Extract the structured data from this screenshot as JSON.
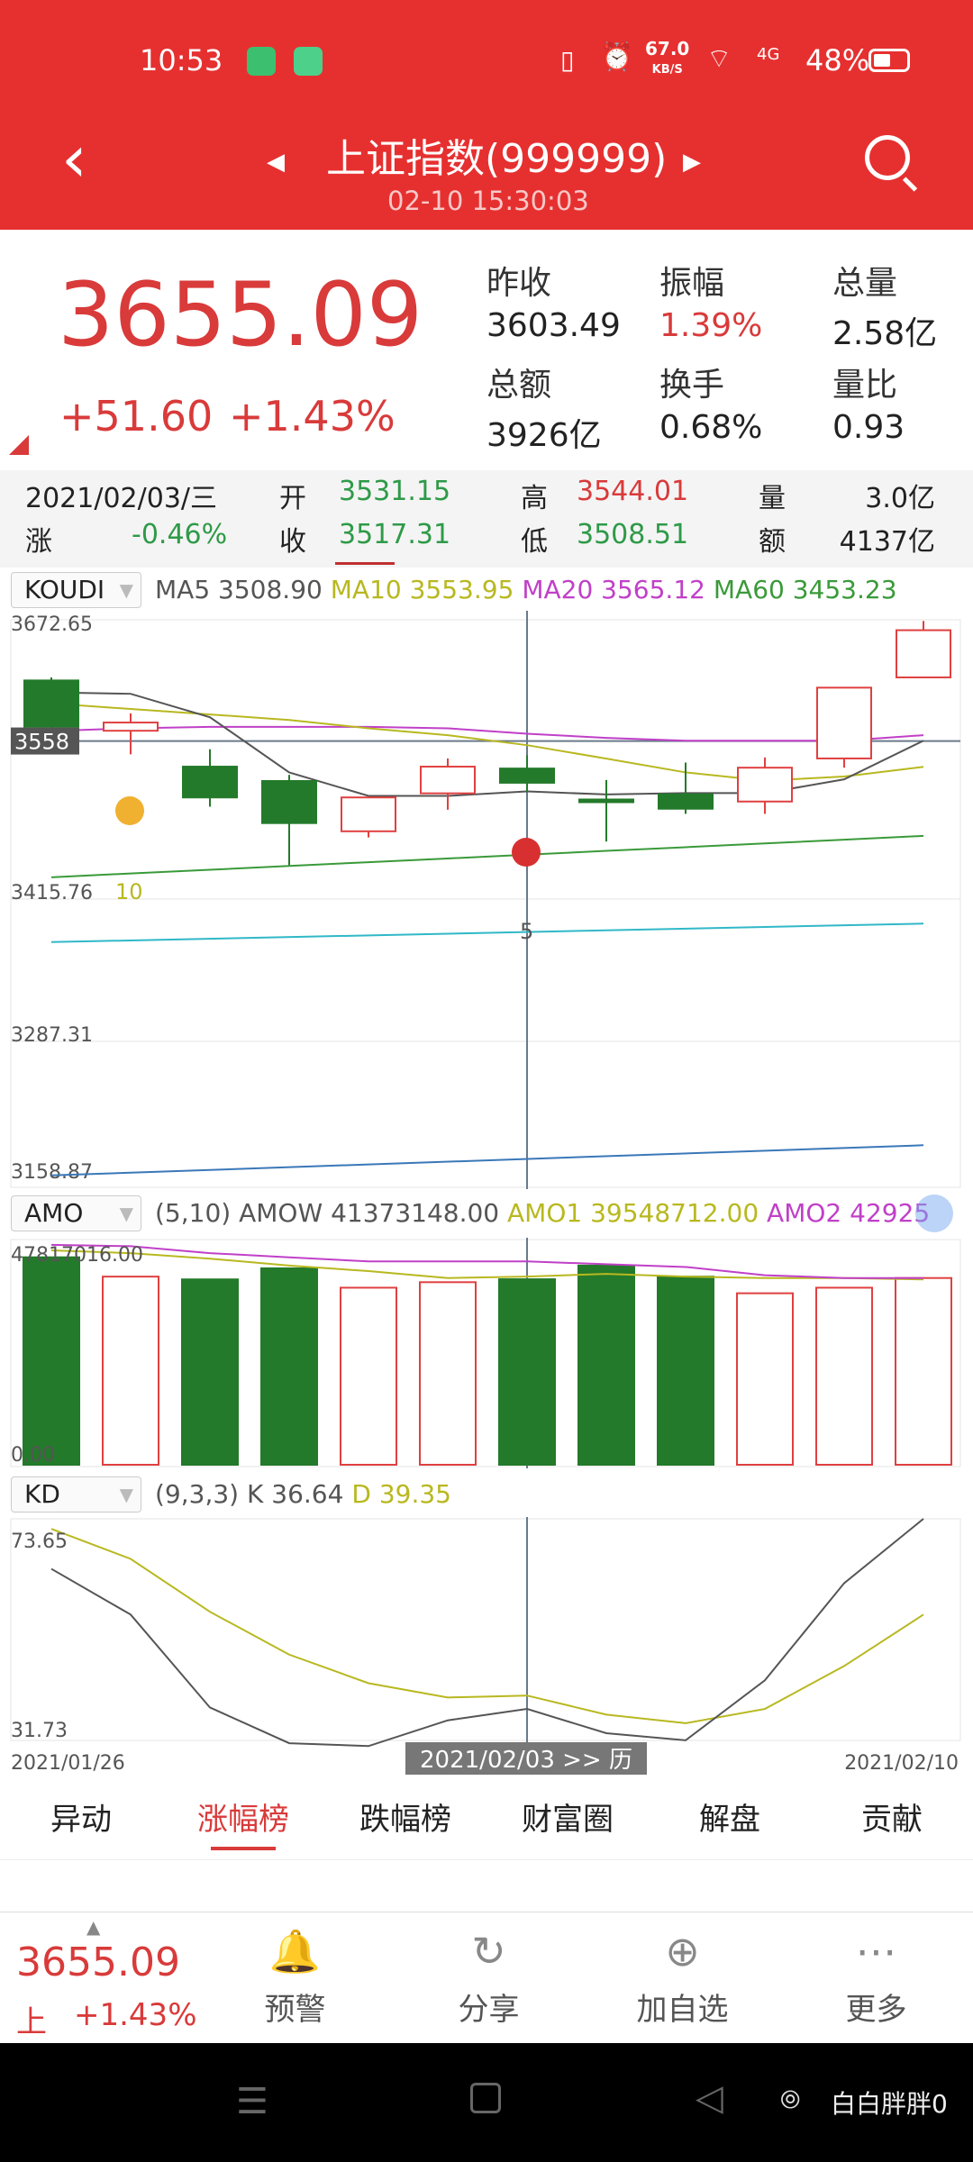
{
  "status": {
    "time": "10:53",
    "speed": "67.0",
    "speed_unit": "KB/S",
    "net": "4G",
    "battery": "48%"
  },
  "header": {
    "title": "上证指数(999999)",
    "datetime": "02-10 15:30:03"
  },
  "quote": {
    "price": "3655.09",
    "change": "+51.60",
    "change_pct": "+1.43%",
    "stats": [
      {
        "label": "昨收",
        "value": "3603.49",
        "color": "#222"
      },
      {
        "label": "振幅",
        "value": "1.39%",
        "color": "#d93a3a"
      },
      {
        "label": "总量",
        "value": "2.58亿",
        "color": "#222"
      },
      {
        "label": "总额",
        "value": "3926亿",
        "color": "#222"
      },
      {
        "label": "换手",
        "value": "0.68%",
        "color": "#222"
      },
      {
        "label": "量比",
        "value": "0.93",
        "color": "#222"
      }
    ]
  },
  "info": {
    "date": "2021/02/03/三",
    "open_l": "开",
    "open": "3531.15",
    "high_l": "高",
    "high": "3544.01",
    "vol_l": "量",
    "vol": "3.0亿",
    "chg_l": "涨",
    "chg": "-0.46%",
    "close_l": "收",
    "close": "3517.31",
    "low_l": "低",
    "low": "3508.51",
    "amt_l": "额",
    "amt": "4137亿"
  },
  "main_ind": {
    "select": "KOUDI",
    "ma5_l": "MA5",
    "ma5": "3508.90",
    "ma10_l": "MA10",
    "ma10": "3553.95",
    "ma20_l": "MA20",
    "ma20": "3565.12",
    "ma60_l": "MA60",
    "ma60": "3453.23"
  },
  "amo_ind": {
    "select": "AMO",
    "params": "(5,10)",
    "amow_l": "AMOW",
    "amow": "41373148.00",
    "amo1_l": "AMO1",
    "amo1": "39548712.00",
    "amo2_l": "AMO2",
    "amo2": "42925"
  },
  "kd_ind": {
    "select": "KD",
    "params": "(9,3,3)",
    "k_l": "K",
    "k": "36.64",
    "d_l": "D",
    "d": "39.35"
  },
  "colors": {
    "up": "#e04040",
    "down": "#237a2a",
    "ma5": "#555555",
    "ma10": "#b8b820",
    "ma20": "#c040c8",
    "ma60": "#3a9a3a",
    "header": "#e63030"
  },
  "chart_data": [
    {
      "type": "candlestick",
      "ylim": [
        3123,
        3672.65
      ],
      "y_ticks": [
        "3672.65",
        "3415.76",
        "3287.31",
        "3158.87"
      ],
      "current_marker": "3558",
      "label_10": "10",
      "label_5": "5",
      "candles": [
        {
          "o": 3617,
          "h": 3620,
          "l": 3565,
          "c": 3572
        },
        {
          "o": 3568,
          "h": 3585,
          "l": 3545,
          "c": 3576
        },
        {
          "o": 3533,
          "h": 3550,
          "l": 3494,
          "c": 3503
        },
        {
          "o": 3519,
          "h": 3525,
          "l": 3437,
          "c": 3478
        },
        {
          "o": 3470,
          "h": 3503,
          "l": 3464,
          "c": 3503
        },
        {
          "o": 3507,
          "h": 3541,
          "l": 3491,
          "c": 3533
        },
        {
          "o": 3531.15,
          "h": 3544.01,
          "l": 3508.51,
          "c": 3517.31
        },
        {
          "o": 3501,
          "h": 3520,
          "l": 3460,
          "c": 3499
        },
        {
          "o": 3506,
          "h": 3537,
          "l": 3487,
          "c": 3492
        },
        {
          "o": 3499,
          "h": 3542,
          "l": 3487,
          "c": 3532
        },
        {
          "o": 3541,
          "h": 3610,
          "l": 3532,
          "c": 3610
        },
        {
          "o": 3620,
          "h": 3675,
          "l": 3620,
          "c": 3666
        }
      ],
      "ma5": [
        3605.4,
        3604,
        3581.2,
        3527.4,
        3504.5,
        3504.5,
        3508.9,
        3505.9,
        3507.2,
        3507.2,
        3520.6,
        3558.3
      ],
      "ma10": [
        3594.6,
        3589.2,
        3583.9,
        3578.5,
        3570.4,
        3563.7,
        3553.95,
        3540.8,
        3527.4,
        3519.3,
        3523.4,
        3532.8
      ],
      "ma20": [
        3567.7,
        3570.4,
        3571.8,
        3571.8,
        3571.8,
        3570.4,
        3565.12,
        3561,
        3558.3,
        3558.3,
        3558.3,
        3563.7
      ],
      "ma60": [
        3425.2,
        3428.9,
        3432.5,
        3436.2,
        3439.9,
        3443.5,
        3447.2,
        3450.9,
        3454.5,
        3458.2,
        3461.8,
        3465.5
      ],
      "line_cyan": [
        3362,
        3380
      ],
      "line_blue": [
        3134.6,
        3164
      ],
      "crosshair_index": 6
    },
    {
      "type": "bar",
      "ylim": [
        0,
        47817016
      ],
      "y_ticks": [
        "47817016.00",
        "0.00"
      ],
      "values": [
        46270000,
        41960000,
        41340000,
        43810000,
        39490000,
        40720000,
        41373148,
        44420000,
        41960000,
        38250000,
        39490000,
        41650000
      ],
      "up": [
        false,
        true,
        false,
        false,
        true,
        true,
        false,
        false,
        false,
        true,
        true,
        true
      ],
      "amo1": [
        47820000,
        47200000,
        45970000,
        44420000,
        43190000,
        41650000,
        41960000,
        42580000,
        41960000,
        41650000,
        41650000,
        41340000
      ],
      "amo2": [
        49050000,
        48740000,
        47200000,
        46270000,
        45350000,
        45350000,
        45350000,
        44730000,
        44110000,
        42270000,
        41650000,
        41650000
      ]
    },
    {
      "type": "line",
      "ylim": [
        31.73,
        73.65
      ],
      "y_ticks": [
        "73.65",
        "31.73"
      ],
      "x_start": "2021/01/26",
      "x_end": "2021/02/10",
      "cursor_label": "2021/02/03 >> 历",
      "k": [
        64.98,
        55.73,
        36.93,
        29.71,
        29.13,
        34.33,
        36.64,
        31.73,
        30.29,
        42.43,
        62.09,
        76.54
      ],
      "d": [
        73.07,
        67.0,
        56.3,
        47.63,
        41.85,
        38.96,
        39.35,
        35.49,
        33.75,
        36.64,
        45.32,
        55.73
      ]
    }
  ],
  "tabs": [
    {
      "label": "异动"
    },
    {
      "label": "涨幅榜",
      "active": true
    },
    {
      "label": "跌幅榜"
    },
    {
      "label": "财富圈"
    },
    {
      "label": "解盘"
    },
    {
      "label": "贡献"
    }
  ],
  "bottom": {
    "price": "3655.09",
    "market": "上",
    "pct": "+1.43%",
    "buttons": [
      {
        "label": "预警",
        "icon": "bell-icon",
        "glyph": "🔔"
      },
      {
        "label": "分享",
        "icon": "share-icon",
        "glyph": "↻"
      },
      {
        "label": "加自选",
        "icon": "add-icon",
        "glyph": "⊕"
      },
      {
        "label": "更多",
        "icon": "more-icon",
        "glyph": "⋯"
      }
    ]
  },
  "watermark": "白白胖胖0"
}
